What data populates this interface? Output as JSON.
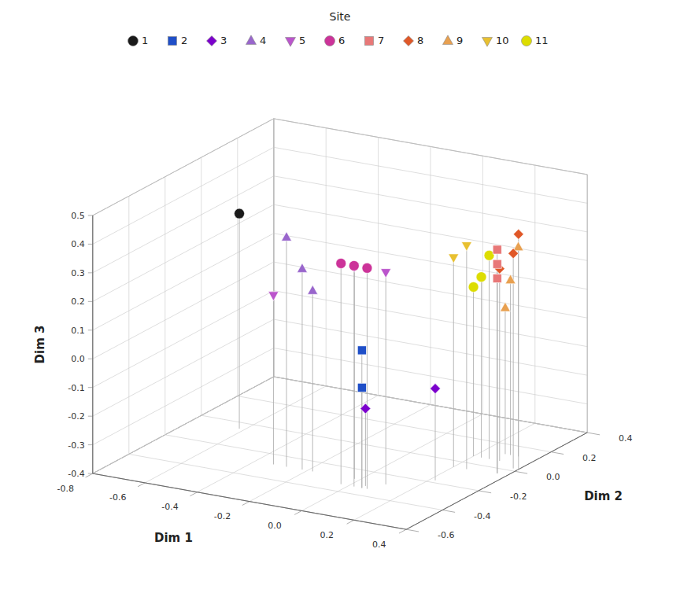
{
  "chart_data": {
    "type": "scatter3d",
    "title": "Site",
    "xlabel": "Dim 1",
    "ylabel": "Dim 2",
    "zlabel": "Dim 3",
    "xlim": [
      -0.8,
      0.4
    ],
    "ylim": [
      -0.6,
      0.4
    ],
    "zlim": [
      -0.4,
      0.5
    ],
    "xticks": [
      -0.8,
      -0.6,
      -0.4,
      -0.2,
      {
        "value": 0,
        "label": "0.0"
      },
      0.2,
      0.4
    ],
    "yticks": [
      -0.6,
      -0.4,
      -0.2,
      {
        "value": 0,
        "label": "0.0"
      },
      0.2,
      0.4
    ],
    "zticks": [
      -0.4,
      -0.3,
      -0.2,
      -0.1,
      {
        "value": 0,
        "label": "0.0"
      },
      0.1,
      0.2,
      0.3,
      0.4,
      0.5
    ],
    "grid": true,
    "legend": "top",
    "series": [
      {
        "name": "1",
        "color": "#1a1a1a",
        "marker": "circle",
        "x": [
          -0.62
        ],
        "y": [
          -0.05
        ],
        "z": [
          0.35
        ]
      },
      {
        "name": "2",
        "color": "#1f4fc8",
        "marker": "square",
        "x": [
          0.05,
          0.05
        ],
        "y": [
          -0.34,
          -0.34
        ],
        "z": [
          0.08,
          -0.05
        ]
      },
      {
        "name": "3",
        "color": "#7b00cc",
        "marker": "diamond",
        "x": [
          0.05,
          0.22
        ],
        "y": [
          -0.32,
          -0.18
        ],
        "z": [
          -0.13,
          -0.08
        ]
      },
      {
        "name": "4",
        "color": "#9966cc",
        "marker": "triangle-up",
        "x": [
          -0.28,
          -0.22,
          -0.18
        ],
        "y": [
          -0.28,
          -0.28,
          -0.28
        ],
        "z": [
          0.4,
          0.3,
          0.23
        ]
      },
      {
        "name": "5",
        "color": "#bb55cc",
        "marker": "triangle-down",
        "x": [
          -0.33,
          -0.02,
          0.1
        ],
        "y": [
          -0.28,
          -0.28,
          -0.28
        ],
        "z": [
          0.19,
          0.34,
          0.34
        ]
      },
      {
        "name": "6",
        "color": "#cc3399",
        "marker": "circle",
        "x": [
          -0.03,
          0.02,
          0.07
        ],
        "y": [
          -0.34,
          -0.34,
          -0.34
        ],
        "z": [
          0.37,
          0.37,
          0.37
        ]
      },
      {
        "name": "7",
        "color": "#e87878",
        "marker": "square",
        "x": [
          0.36,
          0.36,
          0.36
        ],
        "y": [
          -0.04,
          -0.04,
          -0.04
        ],
        "z": [
          0.38,
          0.33,
          0.28
        ]
      },
      {
        "name": "8",
        "color": "#e05828",
        "marker": "diamond",
        "x": [
          0.4,
          0.38,
          0.3
        ],
        "y": [
          0.02,
          0.02,
          0.06
        ],
        "z": [
          0.42,
          0.35,
          0.27
        ]
      },
      {
        "name": "9",
        "color": "#e8a050",
        "marker": "triangle-up",
        "x": [
          0.33,
          0.3,
          0.28
        ],
        "y": [
          0.12,
          0.12,
          0.12
        ],
        "z": [
          0.33,
          0.21,
          0.11
        ]
      },
      {
        "name": "10",
        "color": "#e8c030",
        "marker": "triangle-down",
        "x": [
          0.25,
          0.2
        ],
        "y": [
          -0.05,
          -0.05
        ],
        "z": [
          0.38,
          0.33
        ]
      },
      {
        "name": "11",
        "color": "#dddd00",
        "marker": "circle",
        "x": [
          0.26,
          0.23,
          0.2
        ],
        "y": [
          0.06,
          0.06,
          0.06
        ],
        "z": [
          0.31,
          0.23,
          0.19
        ]
      }
    ]
  }
}
